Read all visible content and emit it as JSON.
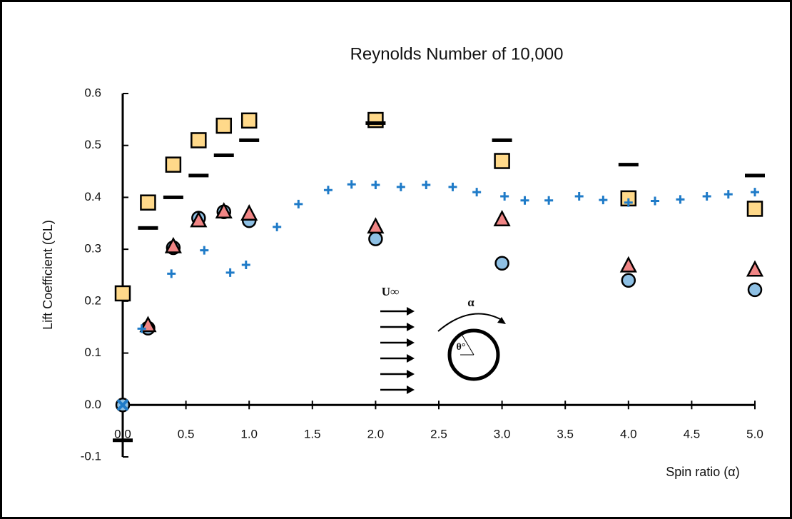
{
  "chart_data": {
    "type": "scatter",
    "title": "Reynolds Number of 10,000",
    "xlabel": "Spin ratio (α)",
    "ylabel": "Lift Coefficient (CL)",
    "xlim": [
      0,
      5
    ],
    "ylim": [
      -0.1,
      0.6
    ],
    "xticks": [
      {
        "value": 0,
        "label": "0.0"
      },
      0.5,
      {
        "value": 1,
        "label": "1.0"
      },
      1.5,
      {
        "value": 2,
        "label": "2.0"
      },
      2.5,
      {
        "value": 3,
        "label": "3.0"
      },
      3.5,
      {
        "value": 4,
        "label": "4.0"
      },
      4.5,
      {
        "value": 5,
        "label": "5.0"
      }
    ],
    "yticks": [
      -0.1,
      {
        "value": 0,
        "label": "0.0"
      },
      0.1,
      0.2,
      0.3,
      0.4,
      0.5,
      0.6
    ],
    "annotations": {
      "velocity": "U∞",
      "spin": "α",
      "angle": "θ°"
    },
    "series": [
      {
        "marker": "square",
        "color": "#ffd98a",
        "x": [
          0,
          0.2,
          0.4,
          0.6,
          0.8,
          1.0,
          2.0,
          3.0,
          4.0,
          5.0
        ],
        "values": [
          0.215,
          0.39,
          0.463,
          0.51,
          0.538,
          0.548,
          0.549,
          0.47,
          0.398,
          0.378
        ]
      },
      {
        "marker": "dash",
        "color": "#000000",
        "x": [
          0,
          0.2,
          0.4,
          0.6,
          0.8,
          1.0,
          2.0,
          3.0,
          4.0,
          5.0
        ],
        "values": [
          -0.068,
          0.341,
          0.4,
          0.442,
          0.481,
          0.51,
          0.543,
          0.51,
          0.463,
          0.442
        ]
      },
      {
        "marker": "circle",
        "color": "#8ec0e4",
        "x": [
          0,
          0.2,
          0.4,
          0.6,
          0.8,
          1.0,
          2.0,
          3.0,
          4.0,
          5.0
        ],
        "values": [
          0,
          0.148,
          0.303,
          0.36,
          0.372,
          0.355,
          0.32,
          0.273,
          0.24,
          0.222
        ]
      },
      {
        "marker": "triangle",
        "color": "#f08585",
        "x": [
          0.2,
          0.4,
          0.6,
          0.8,
          1.0,
          2.0,
          3.0,
          4.0,
          5.0
        ],
        "values": [
          0.153,
          0.305,
          0.355,
          0.372,
          0.368,
          0.343,
          0.357,
          0.268,
          0.26
        ]
      },
      {
        "marker": "plus",
        "color": "#1f7bc8",
        "x": [
          0.15,
          0.385,
          0.645,
          0.85,
          0.975,
          1.22,
          1.39,
          1.625,
          1.81,
          2.0,
          2.2,
          2.4,
          2.61,
          2.8,
          3.02,
          3.18,
          3.37,
          3.61,
          3.8,
          4.0,
          4.21,
          4.41,
          4.62,
          4.79,
          5.0
        ],
        "values": [
          0.147,
          0.253,
          0.298,
          0.255,
          0.27,
          0.343,
          0.387,
          0.414,
          0.425,
          0.424,
          0.42,
          0.424,
          0.42,
          0.41,
          0.402,
          0.394,
          0.394,
          0.402,
          0.395,
          0.39,
          0.393,
          0.396,
          0.402,
          0.406,
          0.41
        ]
      },
      {
        "marker": "cross",
        "color": "#1f7bc8",
        "x": [
          0
        ],
        "values": [
          0
        ]
      }
    ]
  }
}
